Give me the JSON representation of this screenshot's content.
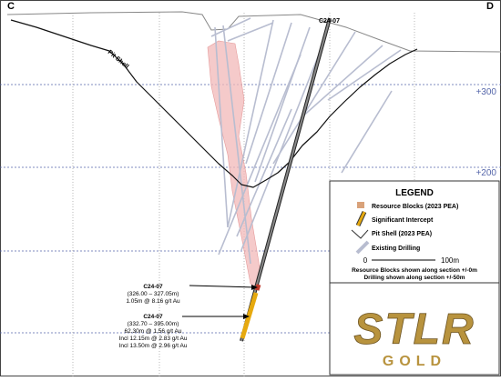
{
  "section": {
    "left_label": "C",
    "right_label": "D",
    "hole_label": "C24-07",
    "pit_shell_label": "Pit Shell",
    "elevation_labels": [
      "+300",
      "+200"
    ]
  },
  "annotations": [
    {
      "hole": "C24-07",
      "interval": "(326.00 – 327.05m)",
      "lines": [
        "1.05m @ 8.16 g/t Au"
      ]
    },
    {
      "hole": "C24-07",
      "interval": "(332.70 – 395.00m)",
      "lines": [
        "62.30m @ 1.56 g/t Au",
        "Incl 12.15m @ 2.83 g/t Au",
        "Incl 13.50m @ 2.96 g/t Au"
      ]
    }
  ],
  "legend": {
    "title": "LEGEND",
    "items": [
      "Resource Blocks (2023 PEA)",
      "Significant Intercept",
      "Pit Shell (2023 PEA)",
      "Existing Drilling"
    ],
    "scale": [
      "0",
      "100m"
    ],
    "notes": [
      "Resource Blocks shown along section +/-0m",
      "Drilling shown along section +/-50m"
    ]
  },
  "logo": {
    "name": "STLR",
    "subtitle": "GOLD"
  }
}
